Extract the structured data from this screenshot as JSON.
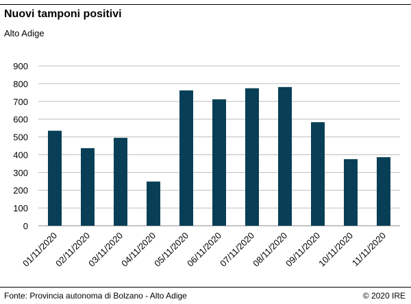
{
  "header": {
    "title": "Nuovi tamponi positivi",
    "subtitle": "Alto Adige"
  },
  "footer": {
    "source": "Fonte: Provincia autonoma di Bolzano - Alto Adige",
    "copyright": "© 2020 IRE"
  },
  "chart_data": {
    "type": "bar",
    "title": "Nuovi tamponi positivi",
    "subtitle": "Alto Adige",
    "categories": [
      "01/11/2020",
      "02/11/2020",
      "03/11/2020",
      "04/11/2020",
      "05/11/2020",
      "06/11/2020",
      "07/11/2020",
      "08/11/2020",
      "09/11/2020",
      "10/11/2020",
      "11/11/2020"
    ],
    "values": [
      535,
      437,
      495,
      249,
      762,
      712,
      774,
      781,
      583,
      375,
      386
    ],
    "ylim": [
      0,
      900
    ],
    "yticks": [
      0,
      100,
      200,
      300,
      400,
      500,
      600,
      700,
      800,
      900
    ],
    "grid": true,
    "bar_color": "#083f56",
    "xlabel": "",
    "ylabel": ""
  }
}
